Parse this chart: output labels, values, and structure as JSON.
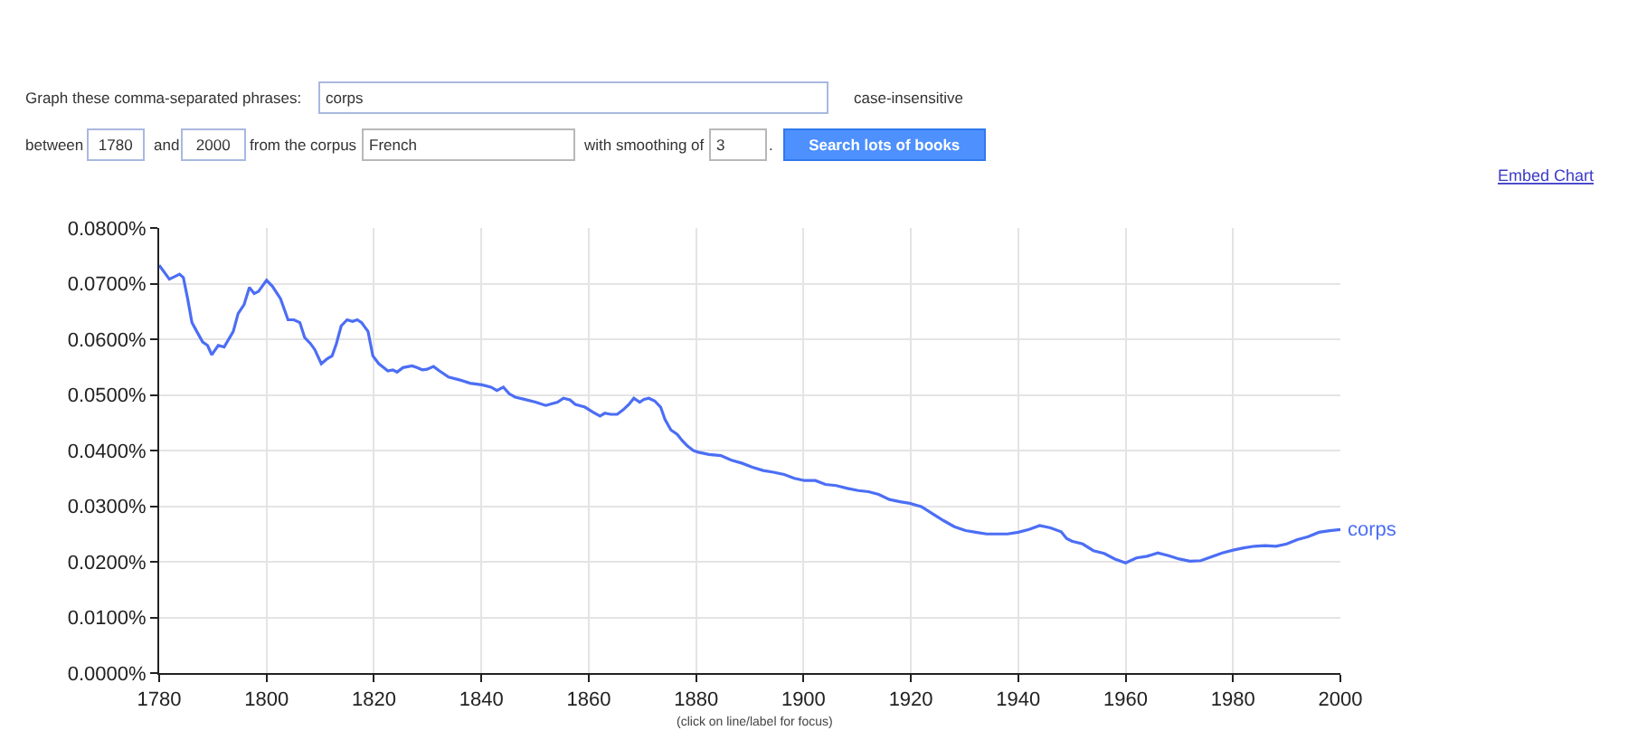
{
  "chart_data": {
    "type": "line",
    "x": [
      1780.0,
      1781.9,
      1783.8,
      1784.5,
      1785.3,
      1786.1,
      1787.0,
      1788.1,
      1789.0,
      1789.8,
      1791.0,
      1792.1,
      1793.8,
      1794.7,
      1795.8,
      1796.8,
      1797.7,
      1798.5,
      1800.0,
      1801.1,
      1802.6,
      1804.0,
      1805.1,
      1806.2,
      1807.1,
      1808.2,
      1809.0,
      1810.2,
      1811.3,
      1812.2,
      1813.0,
      1813.9,
      1815.0,
      1816.0,
      1816.9,
      1817.7,
      1818.9,
      1819.8,
      1820.9,
      1821.8,
      1822.6,
      1823.5,
      1824.3,
      1825.4,
      1827.1,
      1828.0,
      1829.0,
      1829.9,
      1831.1,
      1832.2,
      1833.9,
      1835.9,
      1837.9,
      1840.1,
      1841.8,
      1842.9,
      1844.1,
      1845.2,
      1846.3,
      1848.0,
      1850.1,
      1852.0,
      1854.2,
      1855.3,
      1856.5,
      1857.5,
      1859.3,
      1860.8,
      1862.1,
      1863.0,
      1864.1,
      1865.3,
      1866.4,
      1867.5,
      1868.4,
      1869.5,
      1870.3,
      1871.2,
      1872.3,
      1873.4,
      1874.2,
      1875.3,
      1876.5,
      1877.4,
      1878.4,
      1879.5,
      1880.4,
      1882.4,
      1884.6,
      1886.5,
      1888.6,
      1890.5,
      1892.5,
      1894.4,
      1896.4,
      1898.3,
      1900.2,
      1902.2,
      1904.1,
      1906.1,
      1908.2,
      1910.2,
      1912.1,
      1914.0,
      1916.0,
      1918.0,
      1919.8,
      1922.0,
      1924.1,
      1926.1,
      1928.1,
      1930.2,
      1932.1,
      1934.1,
      1936.0,
      1938.0,
      1940.0,
      1942.0,
      1944.0,
      1946.0,
      1948.0,
      1949.0,
      1950.0,
      1952.0,
      1954.0,
      1956.0,
      1958.0,
      1960.0,
      1962.0,
      1964.0,
      1966.0,
      1968.0,
      1970.0,
      1972.0,
      1974.0,
      1976.0,
      1978.0,
      1980.0,
      1982.0,
      1984.0,
      1986.0,
      1988.0,
      1990.0,
      1992.0,
      1994.0,
      1996.0,
      1998.0,
      2000.0
    ],
    "series": [
      {
        "name": "corps",
        "color": "#4c6ef5",
        "values": [
          0.0733,
          0.0708,
          0.0717,
          0.0711,
          0.0673,
          0.063,
          0.0614,
          0.0595,
          0.0589,
          0.0572,
          0.0589,
          0.0586,
          0.0614,
          0.0646,
          0.0662,
          0.0693,
          0.0682,
          0.0686,
          0.0706,
          0.0695,
          0.0673,
          0.0635,
          0.0635,
          0.063,
          0.0603,
          0.0592,
          0.0581,
          0.0556,
          0.0565,
          0.057,
          0.0592,
          0.0624,
          0.0635,
          0.0632,
          0.0635,
          0.063,
          0.0614,
          0.057,
          0.0556,
          0.0549,
          0.0543,
          0.0545,
          0.0541,
          0.0549,
          0.0552,
          0.0549,
          0.0545,
          0.0546,
          0.0551,
          0.0543,
          0.0532,
          0.0527,
          0.0521,
          0.0518,
          0.0514,
          0.0508,
          0.0514,
          0.0502,
          0.0496,
          0.0492,
          0.0487,
          0.0481,
          0.0487,
          0.0494,
          0.0491,
          0.0483,
          0.0478,
          0.0469,
          0.0462,
          0.0467,
          0.0465,
          0.0465,
          0.0473,
          0.0483,
          0.0494,
          0.0487,
          0.0492,
          0.0494,
          0.0489,
          0.0478,
          0.0456,
          0.0437,
          0.0429,
          0.0418,
          0.0408,
          0.04,
          0.0397,
          0.0393,
          0.0391,
          0.0383,
          0.0377,
          0.037,
          0.0364,
          0.0361,
          0.0357,
          0.035,
          0.0346,
          0.0346,
          0.0339,
          0.0337,
          0.0332,
          0.0328,
          0.0326,
          0.0321,
          0.0312,
          0.0308,
          0.0305,
          0.0299,
          0.0286,
          0.0274,
          0.0263,
          0.0256,
          0.0253,
          0.025,
          0.025,
          0.025,
          0.0253,
          0.0258,
          0.0265,
          0.0261,
          0.0254,
          0.0242,
          0.0237,
          0.0232,
          0.022,
          0.0215,
          0.0205,
          0.0198,
          0.0207,
          0.021,
          0.0216,
          0.0211,
          0.0205,
          0.0201,
          0.0202,
          0.0209,
          0.0216,
          0.0221,
          0.0225,
          0.0228,
          0.0229,
          0.0228,
          0.0232,
          0.024,
          0.0245,
          0.0253,
          0.0256,
          0.0258
        ]
      }
    ],
    "xlim": [
      1780,
      2000
    ],
    "xticks": [
      1780,
      1800,
      1820,
      1840,
      1860,
      1880,
      1900,
      1920,
      1940,
      1960,
      1980,
      2000
    ],
    "ylim": [
      0,
      0.08
    ],
    "yticks": [
      {
        "value": 0,
        "label": "0.0000%"
      },
      {
        "value": 0.01,
        "label": "0.0100%"
      },
      {
        "value": 0.02,
        "label": "0.0200%"
      },
      {
        "value": 0.03,
        "label": "0.0300%"
      },
      {
        "value": 0.04,
        "label": "0.0400%"
      },
      {
        "value": 0.05,
        "label": "0.0500%"
      },
      {
        "value": 0.06,
        "label": "0.0600%"
      },
      {
        "value": 0.07,
        "label": "0.0700%"
      },
      {
        "value": 0.08,
        "label": "0.0800%"
      }
    ],
    "grid": true,
    "marker": "none",
    "line_style": "solid",
    "annotations": [
      "Graph these comma-separated phrases:",
      "corps",
      "case-insensitive",
      "between",
      "1780",
      "and",
      "2000",
      "from the corpus",
      "French",
      "with smoothing of",
      "3",
      ".",
      "Search lots of books",
      "Embed Chart",
      "(click on line/label for focus)"
    ]
  }
}
